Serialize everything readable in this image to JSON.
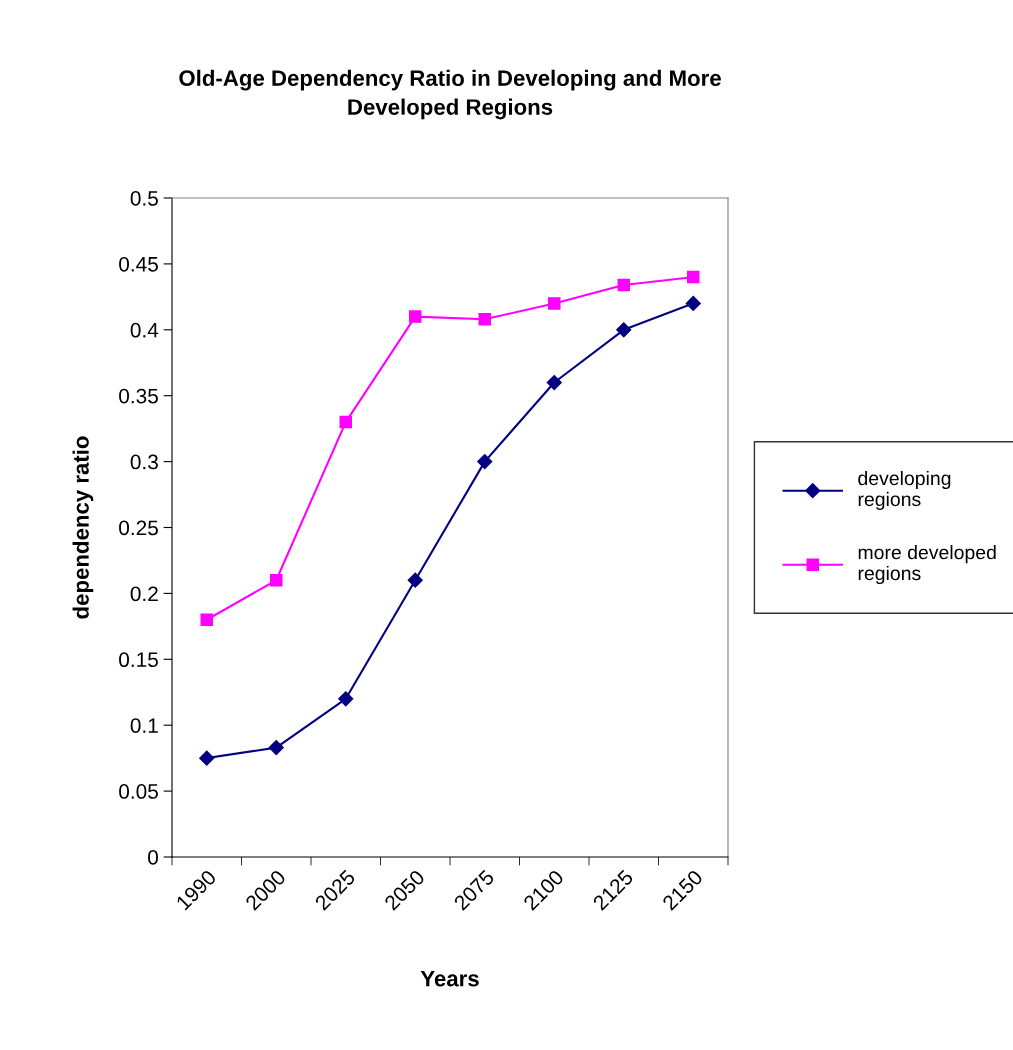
{
  "chart_data": {
    "type": "line",
    "title": "Old-Age Dependency Ratio in Developing and More Developed Regions",
    "xlabel": "Years",
    "ylabel": "dependency ratio",
    "categories": [
      "1990",
      "2000",
      "2025",
      "2050",
      "2075",
      "2100",
      "2125",
      "2150"
    ],
    "series": [
      {
        "name": "developing regions",
        "color": "#000080",
        "marker": "diamond",
        "values": [
          0.075,
          0.083,
          0.12,
          0.21,
          0.3,
          0.36,
          0.4,
          0.42
        ]
      },
      {
        "name": "more developed regions",
        "color": "#ff00ff",
        "marker": "square",
        "values": [
          0.18,
          0.21,
          0.33,
          0.41,
          0.408,
          0.42,
          0.434,
          0.44
        ]
      }
    ],
    "ylim": [
      0,
      0.5
    ],
    "yticks": [
      0,
      0.05,
      0.1,
      0.15,
      0.2,
      0.25,
      0.3,
      0.35,
      0.4,
      0.45,
      0.5
    ],
    "grid": false,
    "legend": "right",
    "line_style": "solid"
  }
}
